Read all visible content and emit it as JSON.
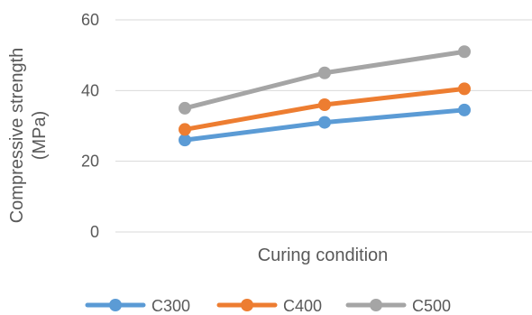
{
  "chart_data": {
    "type": "line",
    "title": "",
    "xlabel": "Curing condition",
    "ylabel_lines": [
      "Compressive strength",
      "(MPa)"
    ],
    "ylim": [
      0,
      60
    ],
    "yticks": [
      0,
      20,
      40,
      60
    ],
    "grid": true,
    "legend_position": "bottom",
    "x_points": 3,
    "series": [
      {
        "name": "C300",
        "color": "#5B9BD5",
        "values": [
          26,
          31,
          34.5
        ]
      },
      {
        "name": "C400",
        "color": "#ED7D31",
        "values": [
          29,
          36,
          40.5
        ]
      },
      {
        "name": "C500",
        "color": "#A5A5A5",
        "values": [
          35,
          45,
          51
        ]
      }
    ]
  }
}
